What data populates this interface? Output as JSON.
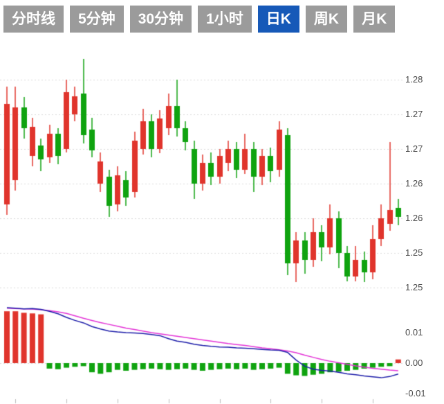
{
  "tabs": [
    {
      "label": "分时线",
      "active": false
    },
    {
      "label": "5分钟",
      "active": false
    },
    {
      "label": "30分钟",
      "active": false
    },
    {
      "label": "1小时",
      "active": false
    },
    {
      "label": "日K",
      "active": true
    },
    {
      "label": "周K",
      "active": false
    },
    {
      "label": "月K",
      "active": false
    }
  ],
  "colors": {
    "up": "#e0342c",
    "down": "#0fa30f",
    "tab_bg": "#9b9b9b",
    "tab_active_bg": "#1659b8",
    "tab_text": "#ffffff",
    "dif_line": "#1a1aa8",
    "dea_line": "#e332d6",
    "grid": "#d9d9d9",
    "axis_text": "#4a4a4a"
  },
  "chart_data": {
    "type": "candlestick",
    "timeframe_selected": "日K",
    "price_axis_labels": [
      {
        "text": "1.28",
        "value": 1.28
      },
      {
        "text": "1.27",
        "value": 1.275
      },
      {
        "text": "1.27",
        "value": 1.27
      },
      {
        "text": "1.26",
        "value": 1.265
      },
      {
        "text": "1.26",
        "value": 1.26
      },
      {
        "text": "1.25",
        "value": 1.255
      },
      {
        "text": "1.25",
        "value": 1.25
      }
    ],
    "candles_format": [
      "open",
      "high",
      "low",
      "close"
    ],
    "up_means": "close >= open (red)",
    "candles": [
      [
        1.262,
        1.279,
        1.2605,
        1.2765
      ],
      [
        1.2655,
        1.279,
        1.264,
        1.276
      ],
      [
        1.276,
        1.2775,
        1.2715,
        1.273
      ],
      [
        1.269,
        1.2745,
        1.2675,
        1.2732
      ],
      [
        1.2705,
        1.2715,
        1.2668,
        1.2685
      ],
      [
        1.2688,
        1.2735,
        1.268,
        1.2722
      ],
      [
        1.2722,
        1.273,
        1.2678,
        1.269
      ],
      [
        1.27,
        1.28,
        1.2695,
        1.2782
      ],
      [
        1.275,
        1.279,
        1.274,
        1.2776
      ],
      [
        1.278,
        1.283,
        1.2708,
        1.272
      ],
      [
        1.2728,
        1.2745,
        1.2688,
        1.2698
      ],
      [
        1.265,
        1.2695,
        1.2638,
        1.2682
      ],
      [
        1.266,
        1.267,
        1.2602,
        1.2618
      ],
      [
        1.262,
        1.2675,
        1.261,
        1.2662
      ],
      [
        1.2655,
        1.2668,
        1.2618,
        1.263
      ],
      [
        1.2638,
        1.2725,
        1.263,
        1.2712
      ],
      [
        1.27,
        1.2758,
        1.2692,
        1.274
      ],
      [
        1.274,
        1.275,
        1.2688,
        1.27
      ],
      [
        1.27,
        1.2756,
        1.2694,
        1.2744
      ],
      [
        1.273,
        1.278,
        1.272,
        1.2762
      ],
      [
        1.2762,
        1.28,
        1.2718,
        1.273
      ],
      [
        1.273,
        1.274,
        1.2698,
        1.271
      ],
      [
        1.27,
        1.2712,
        1.2628,
        1.265
      ],
      [
        1.265,
        1.2692,
        1.264,
        1.268
      ],
      [
        1.268,
        1.2695,
        1.2648,
        1.266
      ],
      [
        1.266,
        1.27,
        1.265,
        1.269
      ],
      [
        1.268,
        1.2712,
        1.2668,
        1.27
      ],
      [
        1.27,
        1.271,
        1.2658,
        1.267
      ],
      [
        1.267,
        1.2722,
        1.2664,
        1.27
      ],
      [
        1.27,
        1.271,
        1.2638,
        1.266
      ],
      [
        1.266,
        1.27,
        1.2648,
        1.269
      ],
      [
        1.269,
        1.2702,
        1.2652,
        1.2668
      ],
      [
        1.267,
        1.274,
        1.266,
        1.2728
      ],
      [
        1.272,
        1.273,
        1.2518,
        1.2535
      ],
      [
        1.2535,
        1.258,
        1.2508,
        1.2568
      ],
      [
        1.2568,
        1.258,
        1.252,
        1.254
      ],
      [
        1.254,
        1.26,
        1.253,
        1.258
      ],
      [
        1.258,
        1.259,
        1.2538,
        1.2558
      ],
      [
        1.2558,
        1.262,
        1.2548,
        1.26
      ],
      [
        1.26,
        1.261,
        1.2528,
        1.255
      ],
      [
        1.255,
        1.256,
        1.2509,
        1.2516
      ],
      [
        1.2516,
        1.256,
        1.2509,
        1.254
      ],
      [
        1.254,
        1.2552,
        1.2508,
        1.2522
      ],
      [
        1.2522,
        1.259,
        1.2512,
        1.257
      ],
      [
        1.257,
        1.262,
        1.256,
        1.26
      ],
      [
        1.2592,
        1.271,
        1.2582,
        1.2612
      ],
      [
        1.2615,
        1.2628,
        1.259,
        1.2602
      ]
    ],
    "indicator": {
      "type": "macd",
      "axis_labels": [
        {
          "text": "0.01",
          "value": 0.01
        },
        {
          "text": "0.00",
          "value": 0.0
        },
        {
          "text": "-0.01",
          "value": -0.01
        }
      ],
      "histogram": [
        0.017,
        0.017,
        0.0165,
        0.0163,
        0.016,
        -0.0018,
        -0.002,
        -0.0015,
        -0.0012,
        -0.001,
        -0.003,
        -0.0035,
        -0.003,
        -0.0022,
        -0.0025,
        -0.0022,
        -0.002,
        -0.0018,
        -0.002,
        -0.0022,
        -0.002,
        -0.0018,
        -0.0022,
        -0.0025,
        -0.0022,
        -0.002,
        -0.0018,
        -0.002,
        -0.0018,
        -0.0022,
        -0.002,
        -0.0018,
        -0.0015,
        -0.0035,
        -0.004,
        -0.0042,
        -0.0038,
        -0.0035,
        -0.003,
        -0.0028,
        -0.0025,
        -0.0022,
        -0.0018,
        -0.0015,
        -0.0012,
        -0.001,
        0.0012
      ],
      "dif": [
        0.0182,
        0.018,
        0.0178,
        0.0179,
        0.0176,
        0.017,
        0.0162,
        0.015,
        0.014,
        0.0132,
        0.012,
        0.0112,
        0.0105,
        0.0102,
        0.01,
        0.0099,
        0.0097,
        0.0094,
        0.009,
        0.008,
        0.0072,
        0.0068,
        0.0062,
        0.0058,
        0.0055,
        0.0053,
        0.0052,
        0.005,
        0.0049,
        0.0047,
        0.0045,
        0.0043,
        0.0042,
        0.0035,
        0.001,
        -0.001,
        -0.002,
        -0.0024,
        -0.0026,
        -0.003,
        -0.0035,
        -0.0038,
        -0.0042,
        -0.0045,
        -0.0048,
        -0.0044,
        -0.0036
      ],
      "dea": [
        0.018,
        0.0179,
        0.0178,
        0.0177,
        0.0175,
        0.0172,
        0.0168,
        0.0163,
        0.0155,
        0.0147,
        0.014,
        0.0133,
        0.0127,
        0.0121,
        0.0115,
        0.011,
        0.0105,
        0.01,
        0.0096,
        0.0092,
        0.0088,
        0.0084,
        0.008,
        0.0076,
        0.0072,
        0.0068,
        0.0064,
        0.0061,
        0.0058,
        0.0054,
        0.005,
        0.0047,
        0.0044,
        0.004,
        0.0034,
        0.0026,
        0.0019,
        0.0012,
        0.0006,
        0.0001,
        -0.0004,
        -0.0009,
        -0.0013,
        -0.0017,
        -0.002,
        -0.0023,
        -0.0025
      ]
    }
  }
}
